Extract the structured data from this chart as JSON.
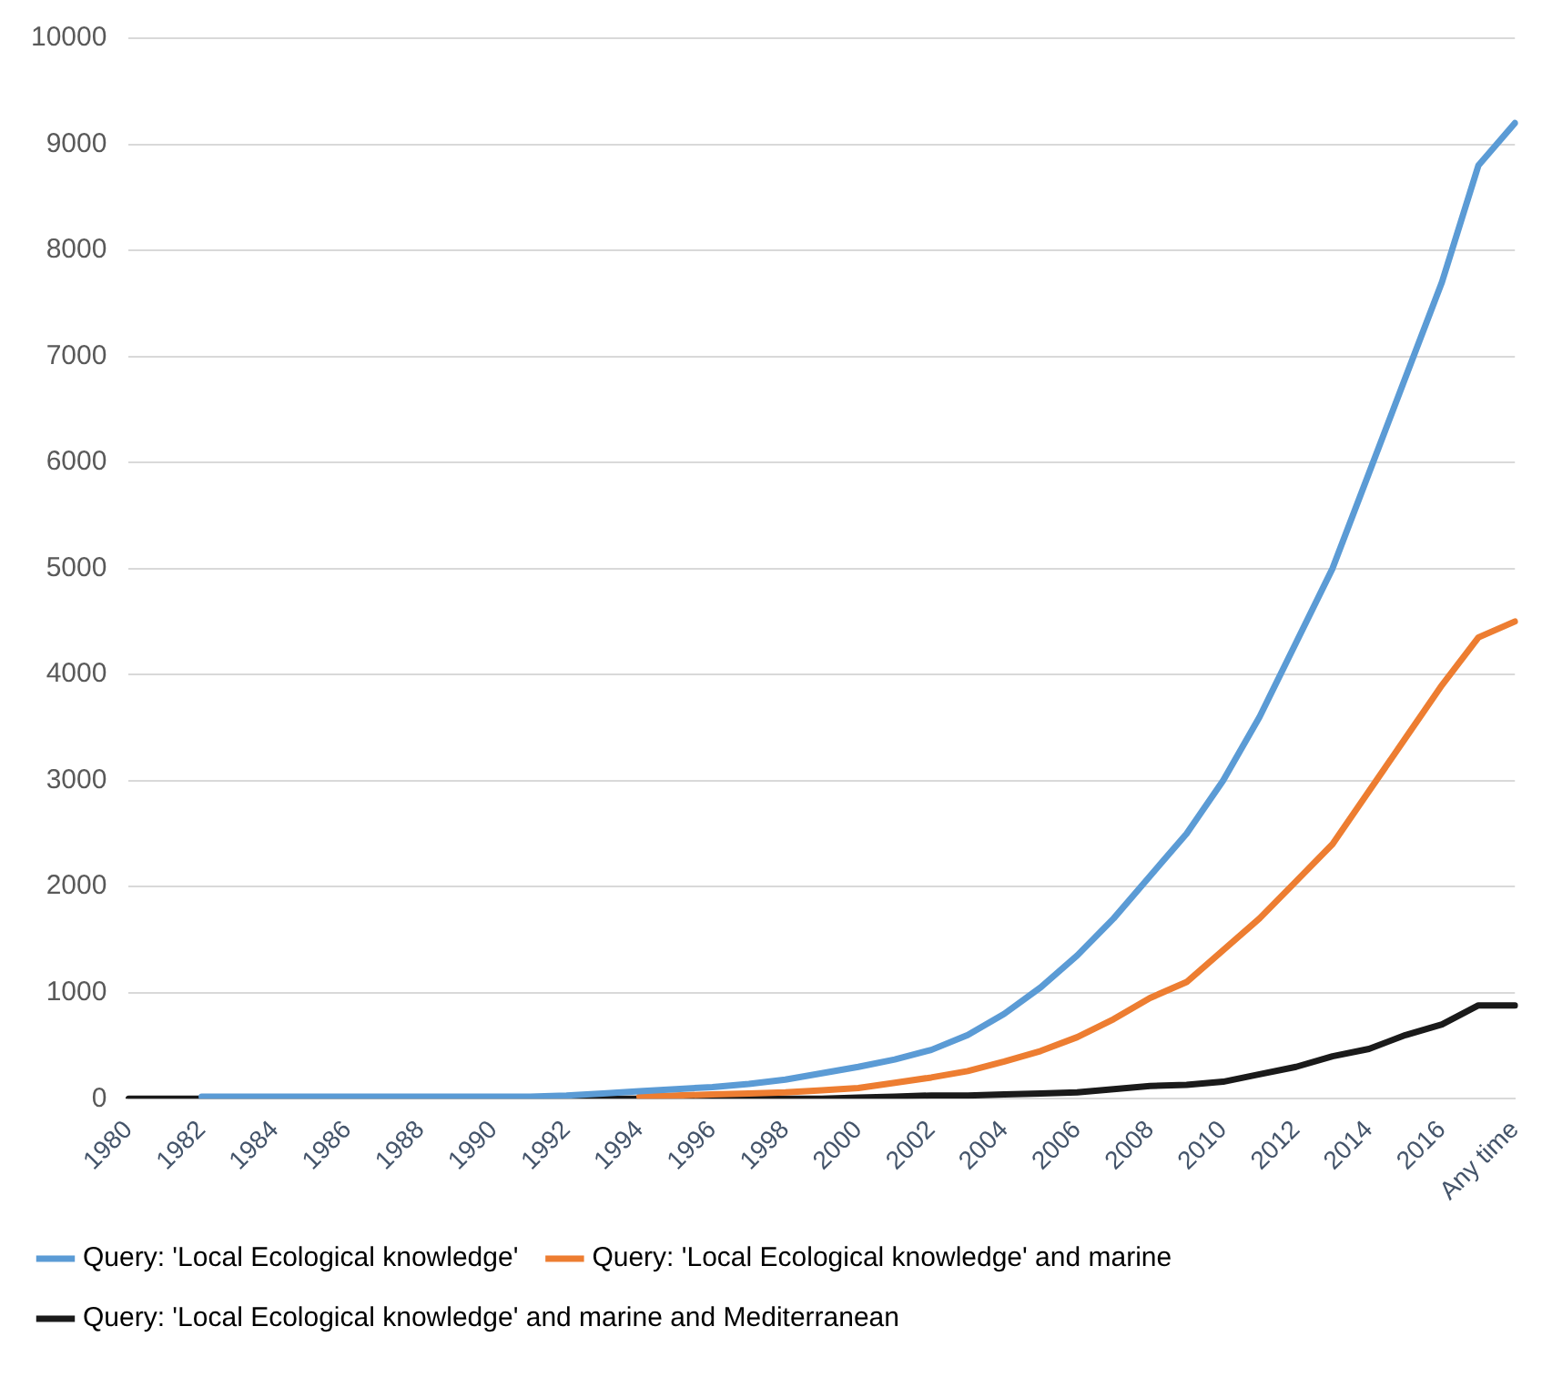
{
  "chart_data": {
    "type": "line",
    "categories": [
      "1980",
      null,
      "1982",
      null,
      "1984",
      null,
      "1986",
      null,
      "1988",
      null,
      "1990",
      null,
      "1992",
      null,
      "1994",
      null,
      "1996",
      null,
      "1998",
      null,
      "2000",
      null,
      "2002",
      null,
      "2004",
      null,
      "2006",
      null,
      "2008",
      null,
      "2010",
      null,
      "2012",
      null,
      "2014",
      null,
      "2016",
      null,
      "Any time"
    ],
    "series": [
      {
        "name": "Query: 'Local Ecological knowledge'",
        "color": "#5b9bd5",
        "values": [
          null,
          null,
          20,
          20,
          20,
          20,
          20,
          20,
          20,
          20,
          20,
          20,
          30,
          50,
          70,
          90,
          110,
          140,
          180,
          240,
          300,
          370,
          460,
          600,
          800,
          1050,
          1350,
          1700,
          2100,
          2500,
          3000,
          3600,
          4300,
          5000,
          5900,
          6800,
          7700,
          8800,
          9200
        ]
      },
      {
        "name": "Query: 'Local Ecological knowledge' and marine",
        "color": "#ed7d31",
        "values": [
          null,
          null,
          null,
          null,
          null,
          null,
          null,
          null,
          null,
          null,
          null,
          null,
          null,
          null,
          20,
          30,
          40,
          50,
          60,
          80,
          100,
          150,
          200,
          260,
          350,
          450,
          580,
          750,
          950,
          1100,
          1400,
          1700,
          2050,
          2400,
          2900,
          3400,
          3900,
          4350,
          4500
        ]
      },
      {
        "name": "Query: 'Local Ecological knowledge' and marine and Mediterranean",
        "color": "#1a1a1a",
        "values": [
          0,
          0,
          0,
          0,
          0,
          0,
          0,
          0,
          0,
          0,
          0,
          0,
          0,
          0,
          0,
          0,
          0,
          0,
          0,
          0,
          10,
          20,
          30,
          30,
          40,
          50,
          60,
          90,
          120,
          130,
          160,
          230,
          300,
          400,
          470,
          600,
          700,
          880,
          880
        ]
      }
    ],
    "ylim": [
      0,
      10000
    ],
    "yticks": [
      0,
      1000,
      2000,
      3000,
      4000,
      5000,
      6000,
      7000,
      8000,
      9000,
      10000
    ],
    "grid": "y",
    "legend": "bottom",
    "marker": "none",
    "line_style": "solid"
  }
}
